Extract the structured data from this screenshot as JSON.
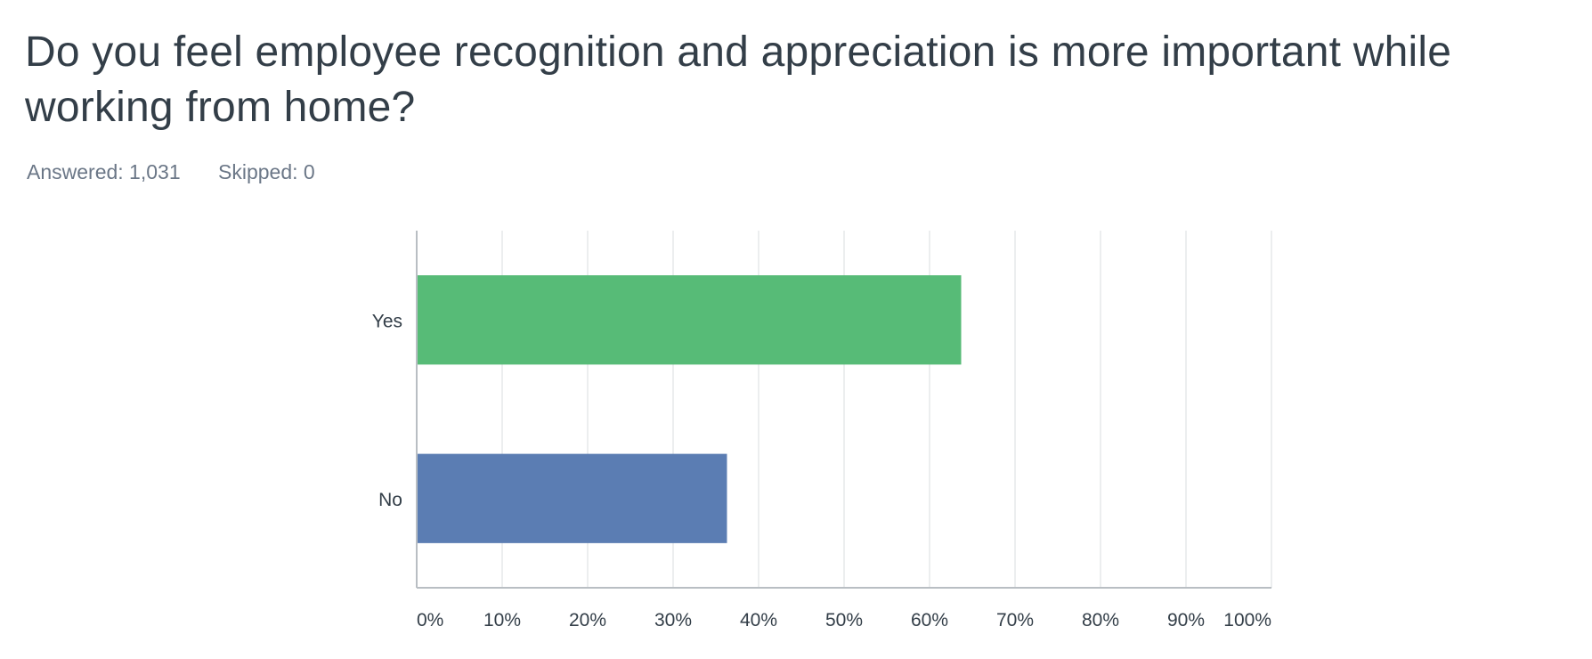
{
  "question": {
    "title": "Do you feel employee recognition and appreciation is more important while working from home?"
  },
  "stats": {
    "answered": "Answered: 1,031",
    "skipped": "Skipped: 0"
  },
  "chart_data": {
    "type": "bar",
    "orientation": "horizontal",
    "categories": [
      "Yes",
      "No"
    ],
    "values": [
      63.7,
      36.3
    ],
    "colors": [
      "#57bb77",
      "#5b7db3"
    ],
    "xlim": [
      0,
      100
    ],
    "xticks": [
      "0%",
      "10%",
      "20%",
      "30%",
      "40%",
      "50%",
      "60%",
      "70%",
      "80%",
      "90%",
      "100%"
    ],
    "grid": true,
    "legend": "none"
  }
}
